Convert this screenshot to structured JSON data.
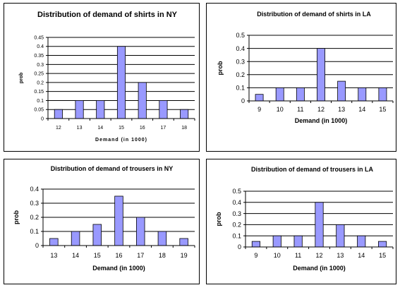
{
  "colors": {
    "bar_fill": "#9999ff",
    "bar_stroke": "#000000",
    "grid": "#000000",
    "plot_bg": "#ffffff"
  },
  "chart_data": [
    {
      "type": "bar",
      "title": "Distribution of demand of shirts in NY",
      "xlabel": "Demand (in 1000)",
      "ylabel": "prob",
      "categories": [
        "12",
        "13",
        "14",
        "15",
        "16",
        "17",
        "18"
      ],
      "values": [
        0.05,
        0.1,
        0.1,
        0.4,
        0.2,
        0.1,
        0.05
      ],
      "yticks": [
        "0",
        "0.05",
        "0.1",
        "0.15",
        "0.2",
        "0.25",
        "0.3",
        "0.35",
        "0.4",
        "0.45"
      ],
      "ylim": [
        0,
        0.45
      ],
      "grid": true,
      "legend": false
    },
    {
      "type": "bar",
      "title": "Distribution of demand of shirts in LA",
      "xlabel": "Demand (in 1000)",
      "ylabel": "prob",
      "categories": [
        "9",
        "10",
        "11",
        "12",
        "13",
        "14",
        "15"
      ],
      "values": [
        0.05,
        0.1,
        0.1,
        0.4,
        0.15,
        0.1,
        0.1
      ],
      "yticks": [
        "0",
        "0.1",
        "0.2",
        "0.3",
        "0.4",
        "0.5"
      ],
      "ylim": [
        0,
        0.5
      ],
      "grid": true,
      "legend": false
    },
    {
      "type": "bar",
      "title": "Distribution of demand of trousers in NY",
      "xlabel": "Demand (in 1000)",
      "ylabel": "prob",
      "categories": [
        "13",
        "14",
        "15",
        "16",
        "17",
        "18",
        "19"
      ],
      "values": [
        0.05,
        0.1,
        0.15,
        0.35,
        0.2,
        0.1,
        0.05
      ],
      "yticks": [
        "0",
        "0.1",
        "0.2",
        "0.3",
        "0.4"
      ],
      "ylim": [
        0,
        0.4
      ],
      "grid": true,
      "legend": false
    },
    {
      "type": "bar",
      "title": "Distribution of demand of trousers in LA",
      "xlabel": "Demand (in 1000)",
      "ylabel": "prob",
      "categories": [
        "9",
        "10",
        "11",
        "12",
        "13",
        "14",
        "15"
      ],
      "values": [
        0.05,
        0.1,
        0.1,
        0.4,
        0.2,
        0.1,
        0.05
      ],
      "yticks": [
        "0",
        "0.1",
        "0.2",
        "0.3",
        "0.4",
        "0.5"
      ],
      "ylim": [
        0,
        0.5
      ],
      "grid": true,
      "legend": false
    }
  ]
}
